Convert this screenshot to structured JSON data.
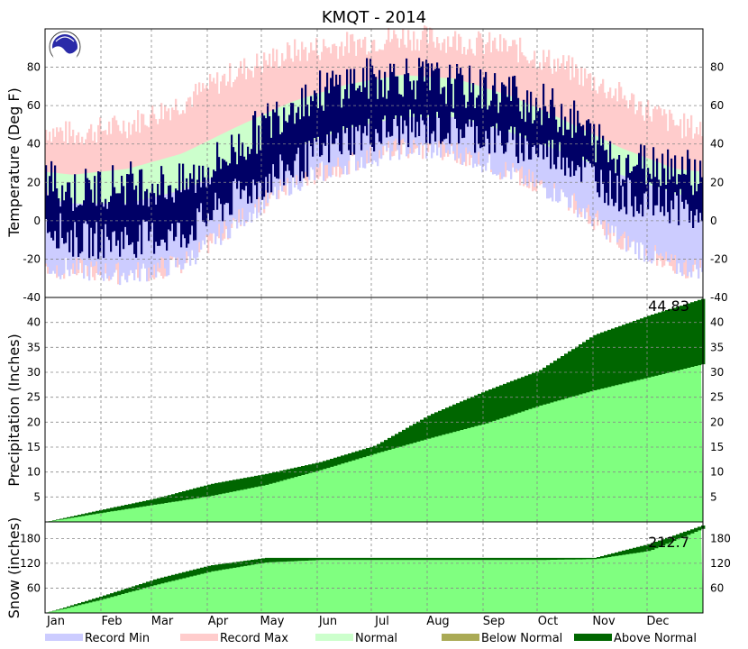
{
  "chart_data": {
    "type": "area",
    "title": "KMQT - 2014",
    "months": [
      "Jan",
      "Feb",
      "Mar",
      "Apr",
      "May",
      "Jun",
      "Jul",
      "Aug",
      "Sep",
      "Oct",
      "Nov",
      "Dec"
    ],
    "legend": [
      {
        "label": "Record Min",
        "color": "#ccccff"
      },
      {
        "label": "Record Max",
        "color": "#ffcccc"
      },
      {
        "label": "Normal",
        "color": "#ccffcc"
      },
      {
        "label": "Below Normal",
        "color": "#aaaa55"
      },
      {
        "label": "Above Normal",
        "color": "#006600"
      }
    ],
    "colors": {
      "record_min": "#ccccff",
      "record_max": "#ffcccc",
      "normal_band": "#ccffcc",
      "observed": "#000066",
      "normal_accum": "#80ff80",
      "below": "#aaaa55",
      "above": "#006600",
      "grid": "#888888"
    },
    "panels": [
      {
        "name": "temperature",
        "ylabel": "Temperature (Deg F)",
        "ylim": [
          -40,
          100
        ],
        "ticks": [
          -40,
          -20,
          0,
          20,
          40,
          60,
          80
        ],
        "tick_labels": [
          "-40",
          "-20",
          "0",
          "20",
          "40",
          "60",
          "80"
        ],
        "normal_high_monthly": [
          24,
          27,
          35,
          49,
          62,
          71,
          76,
          74,
          65,
          52,
          38,
          27
        ],
        "normal_low_monthly": [
          9,
          9,
          16,
          28,
          38,
          48,
          54,
          54,
          46,
          35,
          24,
          14
        ],
        "record_high_monthly": [
          45,
          50,
          62,
          78,
          88,
          92,
          96,
          94,
          90,
          80,
          65,
          50
        ],
        "record_low_monthly": [
          -25,
          -28,
          -22,
          0,
          20,
          30,
          38,
          36,
          25,
          12,
          -10,
          -24
        ],
        "observed_high_monthly": [
          15,
          20,
          18,
          38,
          62,
          72,
          76,
          70,
          66,
          55,
          30,
          30
        ],
        "observed_low_monthly": [
          -8,
          -8,
          -5,
          15,
          30,
          45,
          50,
          50,
          42,
          35,
          15,
          10
        ]
      },
      {
        "name": "precipitation",
        "ylabel": "Precipitation (Inches)",
        "ylim": [
          0,
          45
        ],
        "ticks": [
          5,
          10,
          15,
          20,
          25,
          30,
          35,
          40
        ],
        "tick_labels": [
          "5",
          "10",
          "15",
          "20",
          "25",
          "30",
          "35",
          "40"
        ],
        "final_label": "44.83",
        "normal_cumulative_monthly_end": [
          1.8,
          3.5,
          5.2,
          7.4,
          10.4,
          13.7,
          16.8,
          19.7,
          23.3,
          26.4,
          29.0,
          31.7
        ],
        "observed_cumulative_monthly_end": [
          2.4,
          4.7,
          7.6,
          9.6,
          12.0,
          15.3,
          21.5,
          26.2,
          30.4,
          37.5,
          41.4,
          44.83
        ]
      },
      {
        "name": "snow",
        "ylabel": "Snow (inches)",
        "ylim": [
          0,
          220
        ],
        "ticks": [
          60,
          120,
          180
        ],
        "tick_labels": [
          "60",
          "120",
          "180"
        ],
        "final_label": "212.7",
        "normal_cumulative_monthly_end": [
          32,
          68,
          100,
          122,
          128,
          128,
          128,
          128,
          128,
          130,
          150,
          205
        ],
        "observed_cumulative_monthly_end": [
          40,
          82,
          115,
          133,
          133,
          133,
          133,
          133,
          133,
          133,
          167,
          212.7
        ]
      }
    ]
  }
}
